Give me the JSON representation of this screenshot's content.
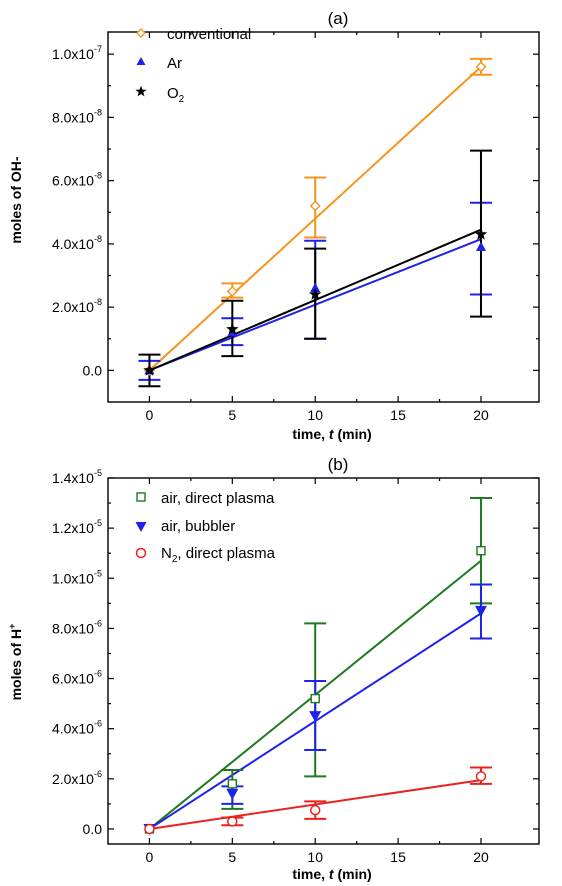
{
  "chart_data": [
    {
      "type": "scatter",
      "title": "(a)",
      "xlabel_pre": "time, ",
      "xlabel_var": "t",
      "xlabel_post": " (min)",
      "ylabel": "moles of OH-",
      "xlim": [
        -2.5,
        23.5
      ],
      "ylim": [
        -1e-08,
        1.07e-07
      ],
      "xticks": [
        0,
        5,
        10,
        15,
        20
      ],
      "xtick_labels": [
        "0",
        "5",
        "10",
        "15",
        "20"
      ],
      "yticks": [
        0,
        2e-08,
        4e-08,
        6e-08,
        8e-08,
        1e-07
      ],
      "ytick_labels": [
        {
          "base": "0.0",
          "exp": ""
        },
        {
          "base": "2.0x10",
          "exp": "-8"
        },
        {
          "base": "4.0x10",
          "exp": "-8"
        },
        {
          "base": "6.0x10",
          "exp": "-8"
        },
        {
          "base": "8.0x10",
          "exp": "-8"
        },
        {
          "base": "1.0x10",
          "exp": "-7"
        }
      ],
      "legend_position": "top-left",
      "series": [
        {
          "name": "conventional",
          "name_sub": "",
          "color": "#F7941D",
          "marker": "diamond-open",
          "x": [
            0,
            5,
            10,
            20
          ],
          "y": [
            0,
            2.5e-08,
            5.2e-08,
            9.6e-08
          ],
          "err_low": [
            0,
            2.3e-08,
            4.2e-08,
            9.35e-08
          ],
          "err_high": [
            0,
            2.75e-08,
            6.1e-08,
            9.85e-08
          ],
          "fit": [
            [
              0,
              0
            ],
            [
              20,
              9.6e-08
            ]
          ]
        },
        {
          "name": "Ar",
          "name_sub": "",
          "color": "#1F22E8",
          "marker": "triangle-up",
          "x": [
            0,
            5,
            10,
            20
          ],
          "y": [
            0,
            1.2e-08,
            2.6e-08,
            3.9e-08
          ],
          "err_low": [
            -3e-09,
            8e-09,
            1e-08,
            2.4e-08
          ],
          "err_high": [
            3e-09,
            1.65e-08,
            4.1e-08,
            5.3e-08
          ],
          "fit": [
            [
              0,
              0
            ],
            [
              20,
              4.15e-08
            ]
          ]
        },
        {
          "name": "O",
          "name_sub": "2",
          "color": "#000000",
          "marker": "star",
          "x": [
            0,
            5,
            10,
            20
          ],
          "y": [
            0,
            1.3e-08,
            2.4e-08,
            4.3e-08
          ],
          "err_low": [
            -5e-09,
            4.5e-09,
            1e-08,
            1.7e-08
          ],
          "err_high": [
            5e-09,
            2.2e-08,
            3.85e-08,
            6.95e-08
          ],
          "fit": [
            [
              0,
              0
            ],
            [
              20,
              4.45e-08
            ]
          ]
        }
      ]
    },
    {
      "type": "scatter",
      "title": "(b)",
      "xlabel_pre": "time, ",
      "xlabel_var": "t",
      "xlabel_post": " (min)",
      "ylabel": "moles of H",
      "ylabel_sup": "+",
      "xlim": [
        -2.5,
        23.5
      ],
      "ylim": [
        -6e-07,
        1.4e-05
      ],
      "xticks": [
        0,
        5,
        10,
        15,
        20
      ],
      "xtick_labels": [
        "0",
        "5",
        "10",
        "15",
        "20"
      ],
      "yticks": [
        0,
        2e-06,
        4e-06,
        6e-06,
        8e-06,
        1e-05,
        1.2e-05,
        1.4e-05
      ],
      "ytick_labels": [
        {
          "base": "0.0",
          "exp": ""
        },
        {
          "base": "2.0x10",
          "exp": "-6"
        },
        {
          "base": "4.0x10",
          "exp": "-6"
        },
        {
          "base": "6.0x10",
          "exp": "-6"
        },
        {
          "base": "8.0x10",
          "exp": "-6"
        },
        {
          "base": "1.0x10",
          "exp": "-5"
        },
        {
          "base": "1.2x10",
          "exp": "-5"
        },
        {
          "base": "1.4x10",
          "exp": "-5"
        }
      ],
      "legend_position": "top-left",
      "series": [
        {
          "name": "air, direct plasma",
          "name_pre": "",
          "name_sub": "",
          "color": "#1F7A1F",
          "marker": "square-open",
          "x": [
            0,
            5,
            10,
            20
          ],
          "y": [
            0,
            1.8e-06,
            5.2e-06,
            1.11e-05
          ],
          "err_low": [
            0,
            8e-07,
            2.1e-06,
            9e-06
          ],
          "err_high": [
            0,
            2.35e-06,
            8.2e-06,
            1.32e-05
          ],
          "fit": [
            [
              0,
              0
            ],
            [
              20,
              1.07e-05
            ]
          ]
        },
        {
          "name": "air, bubbler",
          "name_pre": "",
          "name_sub": "",
          "color": "#1F22E8",
          "marker": "triangle-down",
          "x": [
            0,
            5,
            10,
            20
          ],
          "y": [
            0,
            1.4e-06,
            4.5e-06,
            8.7e-06
          ],
          "err_low": [
            0,
            1e-06,
            3.15e-06,
            7.6e-06
          ],
          "err_high": [
            0,
            1.7e-06,
            5.9e-06,
            9.75e-06
          ],
          "fit": [
            [
              0,
              0
            ],
            [
              20,
              8.6e-06
            ]
          ]
        },
        {
          "name": ", direct plasma",
          "name_pre": "N",
          "name_sub": "2",
          "color": "#E8231F",
          "marker": "circle-open",
          "x": [
            0,
            5,
            10,
            20
          ],
          "y": [
            0,
            3e-07,
            7.5e-07,
            2.1e-06
          ],
          "err_low": [
            0,
            1.5e-07,
            4e-07,
            1.8e-06
          ],
          "err_high": [
            0,
            4.5e-07,
            1.1e-06,
            2.45e-06
          ],
          "fit": [
            [
              0,
              0
            ],
            [
              20,
              1.95e-06
            ]
          ]
        }
      ]
    }
  ]
}
